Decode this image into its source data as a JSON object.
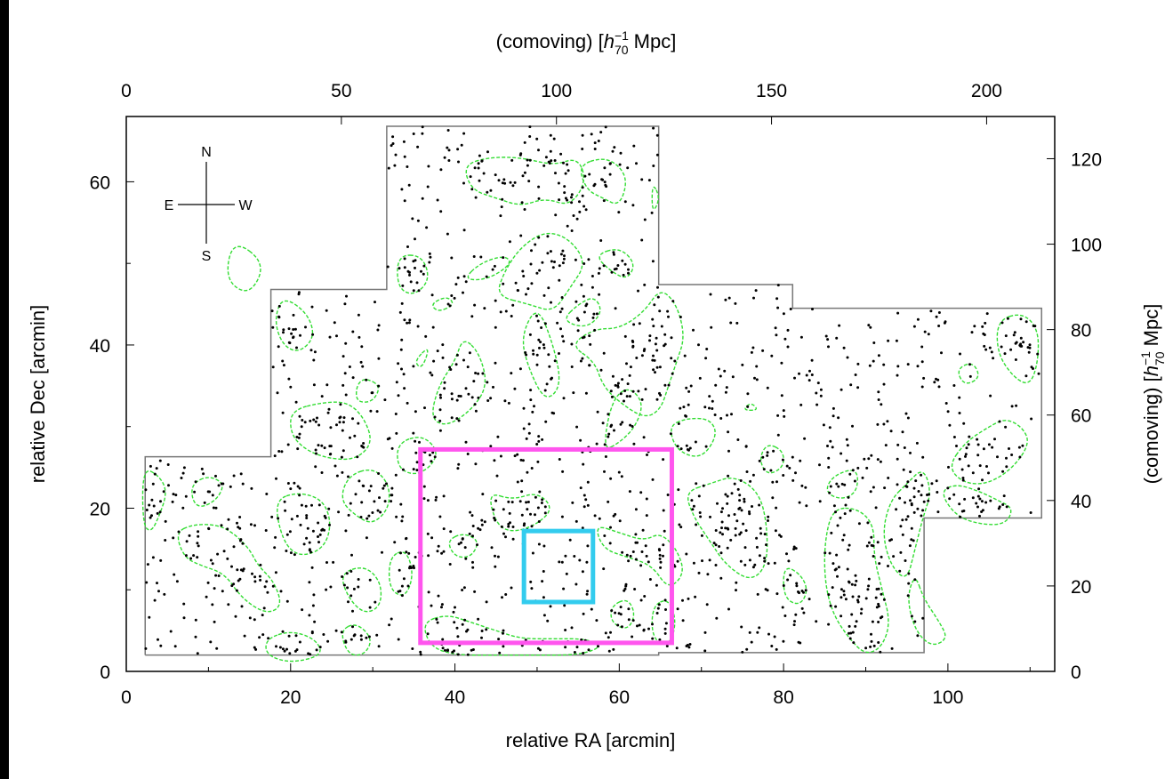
{
  "chart_data": {
    "type": "scatter",
    "xlabel": "relative RA [arcmin]",
    "ylabel": "relative Dec [arcmin]",
    "top_axis_label": "(comoving) [h₇₀⁻¹ Mpc]",
    "right_axis_label": "(comoving) [h₇₀⁻¹ Mpc]",
    "top_axis_label_parts": {
      "pre": "(comoving) [",
      "h": "h",
      "sup": "−1",
      "sub": "70",
      "post": " Mpc]"
    },
    "xlim": [
      0,
      113
    ],
    "ylim": [
      0,
      68
    ],
    "x_ticks": [
      0,
      20,
      40,
      60,
      80,
      100
    ],
    "y_ticks": [
      0,
      20,
      40,
      60
    ],
    "top_ticks": {
      "values": [
        0,
        50,
        100,
        150,
        200
      ],
      "unit_per_data": 1.91
    },
    "right_ticks": {
      "values": [
        0,
        20,
        40,
        60,
        80,
        100,
        120
      ],
      "unit_per_data": 1.91
    },
    "compass": {
      "N": "N",
      "S": "S",
      "E": "E",
      "W": "W"
    },
    "survey_boundary": [
      [
        2.3,
        2
      ],
      [
        2.3,
        26.3
      ],
      [
        17.6,
        26.3
      ],
      [
        17.6,
        46.8
      ],
      [
        31.7,
        46.8
      ],
      [
        31.7,
        66.8
      ],
      [
        64.8,
        66.8
      ],
      [
        64.8,
        47.4
      ],
      [
        81.1,
        47.4
      ],
      [
        81.1,
        44.5
      ],
      [
        111.4,
        44.5
      ],
      [
        111.4,
        18.8
      ],
      [
        97.1,
        18.8
      ],
      [
        97.1,
        2.3
      ],
      [
        64.8,
        2.3
      ],
      [
        64.8,
        2
      ],
      [
        2.3,
        2
      ]
    ],
    "regions": [
      {
        "name": "",
        "color": "#ff55ee",
        "x0": 35.8,
        "y0": 3.5,
        "x1": 66.4,
        "y1": 27.2
      },
      {
        "name": "",
        "color": "#33ccee",
        "x0": 48.4,
        "y0": 8.5,
        "x1": 56.8,
        "y1": 17.2
      }
    ],
    "contours": [
      [
        [
          13,
          53
        ],
        [
          17,
          50
        ],
        [
          15,
          46
        ],
        [
          12,
          48
        ]
      ],
      [
        [
          19,
          46
        ],
        [
          22,
          44
        ],
        [
          23,
          41
        ],
        [
          21,
          39
        ],
        [
          19,
          40
        ],
        [
          18,
          43
        ]
      ],
      [
        [
          33,
          51
        ],
        [
          36,
          51
        ],
        [
          37,
          48
        ],
        [
          35,
          46
        ],
        [
          33,
          47
        ]
      ],
      [
        [
          40,
          45
        ],
        [
          38,
          44
        ],
        [
          37,
          45
        ],
        [
          39,
          46
        ]
      ],
      [
        [
          35,
          38
        ],
        [
          37,
          40
        ],
        [
          36,
          37
        ]
      ],
      [
        [
          41,
          62
        ],
        [
          44,
          63
        ],
        [
          48,
          63
        ],
        [
          52,
          62
        ],
        [
          55,
          63
        ],
        [
          56,
          60
        ],
        [
          54,
          57
        ],
        [
          51,
          58
        ],
        [
          48,
          57
        ],
        [
          45,
          58
        ],
        [
          42,
          59
        ]
      ],
      [
        [
          55,
          62
        ],
        [
          58,
          63
        ],
        [
          60,
          62
        ],
        [
          61,
          60
        ],
        [
          60,
          57
        ],
        [
          58,
          58
        ],
        [
          56,
          59
        ]
      ],
      [
        [
          64,
          60
        ],
        [
          65,
          58
        ],
        [
          64,
          56
        ]
      ],
      [
        [
          57,
          51
        ],
        [
          60,
          52
        ],
        [
          62,
          50
        ],
        [
          61,
          48
        ],
        [
          59,
          49
        ]
      ],
      [
        [
          45,
          46
        ],
        [
          49,
          45
        ],
        [
          52,
          44
        ],
        [
          54,
          47
        ],
        [
          56,
          50
        ],
        [
          54,
          53
        ],
        [
          51,
          54
        ],
        [
          48,
          52
        ],
        [
          46,
          49
        ]
      ],
      [
        [
          41,
          48
        ],
        [
          43,
          50
        ],
        [
          46,
          51
        ],
        [
          47,
          50
        ],
        [
          44,
          48
        ]
      ],
      [
        [
          50,
          45
        ],
        [
          52,
          40
        ],
        [
          53,
          35
        ],
        [
          51,
          33
        ],
        [
          49,
          37
        ],
        [
          48,
          41
        ]
      ],
      [
        [
          53,
          43
        ],
        [
          55,
          45
        ],
        [
          57,
          46
        ],
        [
          58,
          44
        ],
        [
          56,
          42
        ]
      ],
      [
        [
          41,
          41
        ],
        [
          43,
          39
        ],
        [
          44,
          35
        ],
        [
          42,
          32
        ],
        [
          39,
          30
        ],
        [
          37,
          31
        ],
        [
          38,
          35
        ],
        [
          40,
          38
        ]
      ],
      [
        [
          54,
          40
        ],
        [
          57,
          38
        ],
        [
          58,
          35
        ],
        [
          60,
          33
        ],
        [
          63,
          31
        ],
        [
          65,
          32
        ],
        [
          66,
          35
        ],
        [
          67,
          38
        ],
        [
          68,
          41
        ],
        [
          67,
          45
        ],
        [
          65,
          47
        ],
        [
          63,
          44
        ],
        [
          60,
          42
        ],
        [
          57,
          42
        ]
      ],
      [
        [
          58,
          27
        ],
        [
          60,
          28
        ],
        [
          62,
          30
        ],
        [
          63,
          33
        ],
        [
          61,
          35
        ],
        [
          59,
          33
        ]
      ],
      [
        [
          66,
          30
        ],
        [
          68,
          31
        ],
        [
          71,
          31
        ],
        [
          72,
          29
        ],
        [
          70,
          26
        ],
        [
          67,
          27
        ]
      ],
      [
        [
          75,
          32
        ],
        [
          76,
          33
        ],
        [
          77,
          32
        ]
      ],
      [
        [
          78,
          28
        ],
        [
          80,
          27
        ],
        [
          80,
          25
        ],
        [
          78,
          24
        ],
        [
          77,
          26
        ]
      ],
      [
        [
          44,
          22
        ],
        [
          47,
          21
        ],
        [
          50,
          22
        ],
        [
          52,
          20
        ],
        [
          50,
          18
        ],
        [
          47,
          17
        ],
        [
          45,
          18
        ]
      ],
      [
        [
          39,
          16
        ],
        [
          41,
          17
        ],
        [
          43,
          16
        ],
        [
          42,
          14
        ],
        [
          40,
          14
        ]
      ],
      [
        [
          57,
          18
        ],
        [
          60,
          17
        ],
        [
          63,
          16
        ],
        [
          65,
          17
        ],
        [
          67,
          15
        ],
        [
          68,
          12
        ],
        [
          66,
          10
        ],
        [
          64,
          13
        ],
        [
          61,
          14
        ],
        [
          58,
          15
        ]
      ],
      [
        [
          68,
          22
        ],
        [
          71,
          23
        ],
        [
          74,
          24
        ],
        [
          77,
          22
        ],
        [
          78,
          18
        ],
        [
          78,
          13
        ],
        [
          76,
          11
        ],
        [
          73,
          13
        ],
        [
          71,
          16
        ],
        [
          69,
          19
        ]
      ],
      [
        [
          59,
          8
        ],
        [
          61,
          9
        ],
        [
          62,
          7
        ],
        [
          61,
          5
        ],
        [
          59,
          6
        ]
      ],
      [
        [
          64,
          8
        ],
        [
          66,
          9
        ],
        [
          67,
          6
        ],
        [
          66,
          3
        ],
        [
          64,
          4
        ]
      ],
      [
        [
          86,
          24
        ],
        [
          89,
          25
        ],
        [
          89,
          22
        ],
        [
          87,
          21
        ],
        [
          85,
          22
        ]
      ],
      [
        [
          86,
          20
        ],
        [
          89,
          20
        ],
        [
          91,
          18
        ],
        [
          91,
          14
        ],
        [
          92,
          10
        ],
        [
          93,
          6
        ],
        [
          92,
          3
        ],
        [
          90,
          2
        ],
        [
          88,
          4
        ],
        [
          86,
          7
        ],
        [
          85,
          11
        ],
        [
          85,
          16
        ]
      ],
      [
        [
          93,
          21
        ],
        [
          95,
          23
        ],
        [
          97,
          25
        ],
        [
          98,
          22
        ],
        [
          97,
          19
        ],
        [
          96,
          15
        ],
        [
          95,
          11
        ],
        [
          93,
          13
        ],
        [
          92,
          17
        ]
      ],
      [
        [
          96,
          12
        ],
        [
          97,
          9
        ],
        [
          99,
          6
        ],
        [
          100,
          4
        ],
        [
          98,
          3
        ],
        [
          96,
          5
        ],
        [
          95,
          9
        ]
      ],
      [
        [
          100,
          25
        ],
        [
          102,
          28
        ],
        [
          105,
          30
        ],
        [
          107,
          31
        ],
        [
          109,
          30
        ],
        [
          110,
          28
        ],
        [
          108,
          25
        ],
        [
          105,
          23
        ],
        [
          102,
          23
        ]
      ],
      [
        [
          99,
          22
        ],
        [
          101,
          23
        ],
        [
          104,
          22
        ],
        [
          106,
          21
        ],
        [
          108,
          20
        ],
        [
          107,
          18
        ],
        [
          104,
          18
        ],
        [
          101,
          19
        ]
      ],
      [
        [
          106,
          43
        ],
        [
          109,
          44
        ],
        [
          111,
          42
        ],
        [
          111,
          38
        ],
        [
          110,
          35
        ],
        [
          108,
          36
        ],
        [
          106,
          39
        ]
      ],
      [
        [
          101,
          37
        ],
        [
          103,
          38
        ],
        [
          104,
          36
        ],
        [
          102,
          35
        ]
      ],
      [
        [
          20,
          32
        ],
        [
          24,
          33
        ],
        [
          27,
          33
        ],
        [
          29,
          31
        ],
        [
          30,
          28
        ],
        [
          28,
          26
        ],
        [
          25,
          26
        ],
        [
          22,
          27
        ],
        [
          20,
          29
        ]
      ],
      [
        [
          29,
          36
        ],
        [
          31,
          35
        ],
        [
          30,
          33
        ],
        [
          28,
          33
        ],
        [
          28,
          35
        ]
      ],
      [
        [
          33,
          28
        ],
        [
          36,
          29
        ],
        [
          38,
          27
        ],
        [
          37,
          25
        ],
        [
          35,
          24
        ],
        [
          33,
          25
        ]
      ],
      [
        [
          2,
          25
        ],
        [
          4,
          24
        ],
        [
          5,
          22
        ],
        [
          4,
          19
        ],
        [
          3,
          17
        ],
        [
          2,
          18
        ]
      ],
      [
        [
          8,
          23
        ],
        [
          10,
          24
        ],
        [
          12,
          23
        ],
        [
          11,
          21
        ],
        [
          9,
          20
        ],
        [
          8,
          21
        ]
      ],
      [
        [
          6,
          17
        ],
        [
          8,
          18
        ],
        [
          11,
          18
        ],
        [
          13,
          17
        ],
        [
          15,
          15
        ],
        [
          16,
          13
        ],
        [
          18,
          11
        ],
        [
          19,
          8
        ],
        [
          17,
          7
        ],
        [
          14,
          9
        ],
        [
          12,
          12
        ],
        [
          9,
          13
        ],
        [
          7,
          14
        ]
      ],
      [
        [
          18,
          21
        ],
        [
          21,
          22
        ],
        [
          24,
          21
        ],
        [
          25,
          18
        ],
        [
          24,
          15
        ],
        [
          21,
          14
        ],
        [
          19,
          16
        ]
      ],
      [
        [
          27,
          24
        ],
        [
          30,
          25
        ],
        [
          32,
          23
        ],
        [
          32,
          20
        ],
        [
          30,
          18
        ],
        [
          28,
          19
        ],
        [
          26,
          21
        ]
      ],
      [
        [
          26,
          12
        ],
        [
          29,
          13
        ],
        [
          31,
          11
        ],
        [
          31,
          8
        ],
        [
          29,
          7
        ],
        [
          27,
          9
        ]
      ],
      [
        [
          32,
          14
        ],
        [
          34,
          15
        ],
        [
          35,
          12
        ],
        [
          34,
          9
        ],
        [
          32,
          10
        ]
      ],
      [
        [
          17,
          4
        ],
        [
          20,
          5
        ],
        [
          23,
          4
        ],
        [
          24,
          2
        ],
        [
          20,
          1
        ],
        [
          17,
          2
        ]
      ],
      [
        [
          26,
          5
        ],
        [
          28,
          6
        ],
        [
          30,
          4
        ],
        [
          29,
          2
        ],
        [
          27,
          2
        ]
      ],
      [
        [
          36,
          6
        ],
        [
          39,
          7
        ],
        [
          42,
          6
        ],
        [
          45,
          5
        ],
        [
          48,
          4
        ],
        [
          52,
          4
        ],
        [
          56,
          4
        ],
        [
          58,
          3
        ],
        [
          55,
          2
        ],
        [
          50,
          2
        ],
        [
          45,
          2
        ],
        [
          40,
          2
        ],
        [
          37,
          3
        ]
      ],
      [
        [
          80,
          13
        ],
        [
          82,
          12
        ],
        [
          83,
          10
        ],
        [
          82,
          8
        ],
        [
          80,
          9
        ]
      ]
    ]
  }
}
